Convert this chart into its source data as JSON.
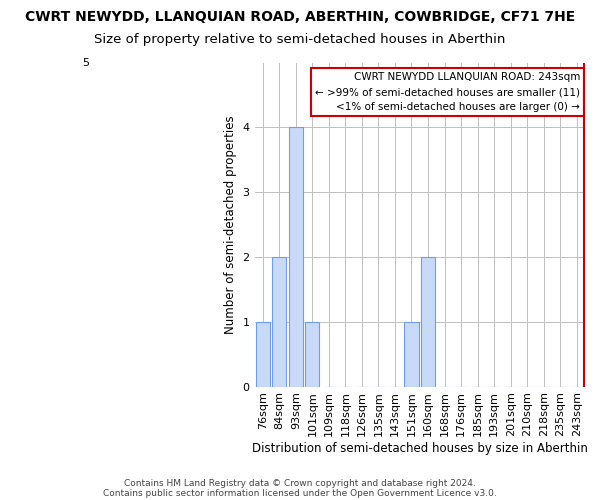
{
  "title": "CWRT NEWYDD, LLANQUIAN ROAD, ABERTHIN, COWBRIDGE, CF71 7HE",
  "subtitle": "Size of property relative to semi-detached houses in Aberthin",
  "xlabel": "Distribution of semi-detached houses by size in Aberthin",
  "ylabel": "Number of semi-detached properties",
  "footer1": "Contains HM Land Registry data © Crown copyright and database right 2024.",
  "footer2": "Contains public sector information licensed under the Open Government Licence v3.0.",
  "categories": [
    "76sqm",
    "84sqm",
    "93sqm",
    "101sqm",
    "109sqm",
    "118sqm",
    "126sqm",
    "135sqm",
    "143sqm",
    "151sqm",
    "160sqm",
    "168sqm",
    "176sqm",
    "185sqm",
    "193sqm",
    "201sqm",
    "210sqm",
    "218sqm",
    "235sqm",
    "243sqm"
  ],
  "values": [
    1,
    2,
    4,
    1,
    0,
    0,
    0,
    0,
    0,
    1,
    2,
    0,
    0,
    0,
    0,
    0,
    0,
    0,
    0,
    0
  ],
  "bar_color": "#c9daf8",
  "bar_edge_color": "#6d9eeb",
  "highlight_line_color": "#cc0000",
  "highlight_index": 19,
  "ylim": [
    0,
    5
  ],
  "yticks": [
    0,
    1,
    2,
    3,
    4,
    5
  ],
  "legend_title": "CWRT NEWYDD LLANQUIAN ROAD: 243sqm",
  "legend_line1": "← >99% of semi-detached houses are smaller (11)",
  "legend_line2": "<1% of semi-detached houses are larger (0) →",
  "legend_box_color": "#ffffff",
  "legend_box_edge": "#cc0000",
  "background_color": "#ffffff",
  "grid_color": "#c0c0c0",
  "title_fontsize": 10,
  "subtitle_fontsize": 9.5,
  "tick_fontsize": 8,
  "ylabel_fontsize": 8.5,
  "xlabel_fontsize": 8.5,
  "legend_fontsize": 7.5
}
